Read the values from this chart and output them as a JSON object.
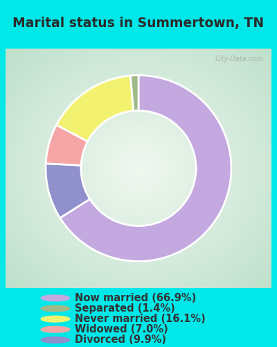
{
  "title": "Marital status in Summertown, TN",
  "slices": [
    66.9,
    9.9,
    7.0,
    16.1,
    1.4
  ],
  "slice_order_labels": [
    "Now married",
    "Divorced",
    "Widowed",
    "Never married",
    "Separated"
  ],
  "labels": [
    "Now married (66.9%)",
    "Separated (1.4%)",
    "Never married (16.1%)",
    "Widowed (7.0%)",
    "Divorced (9.9%)"
  ],
  "legend_colors": [
    "#c4a8e0",
    "#9fba88",
    "#f2f270",
    "#f5a5a5",
    "#9090cc"
  ],
  "slice_colors": [
    "#c4a8e0",
    "#9090cc",
    "#f5a5a5",
    "#f2f270",
    "#9fba88"
  ],
  "bg_cyan": "#00e8e8",
  "bg_chart_outer": "#c8e8d0",
  "bg_chart_inner": "#f0f8f0",
  "title_fontsize": 13.5,
  "legend_fontsize": 10.5,
  "watermark": "City-Data.com",
  "startangle": 90,
  "donut_width": 0.38
}
